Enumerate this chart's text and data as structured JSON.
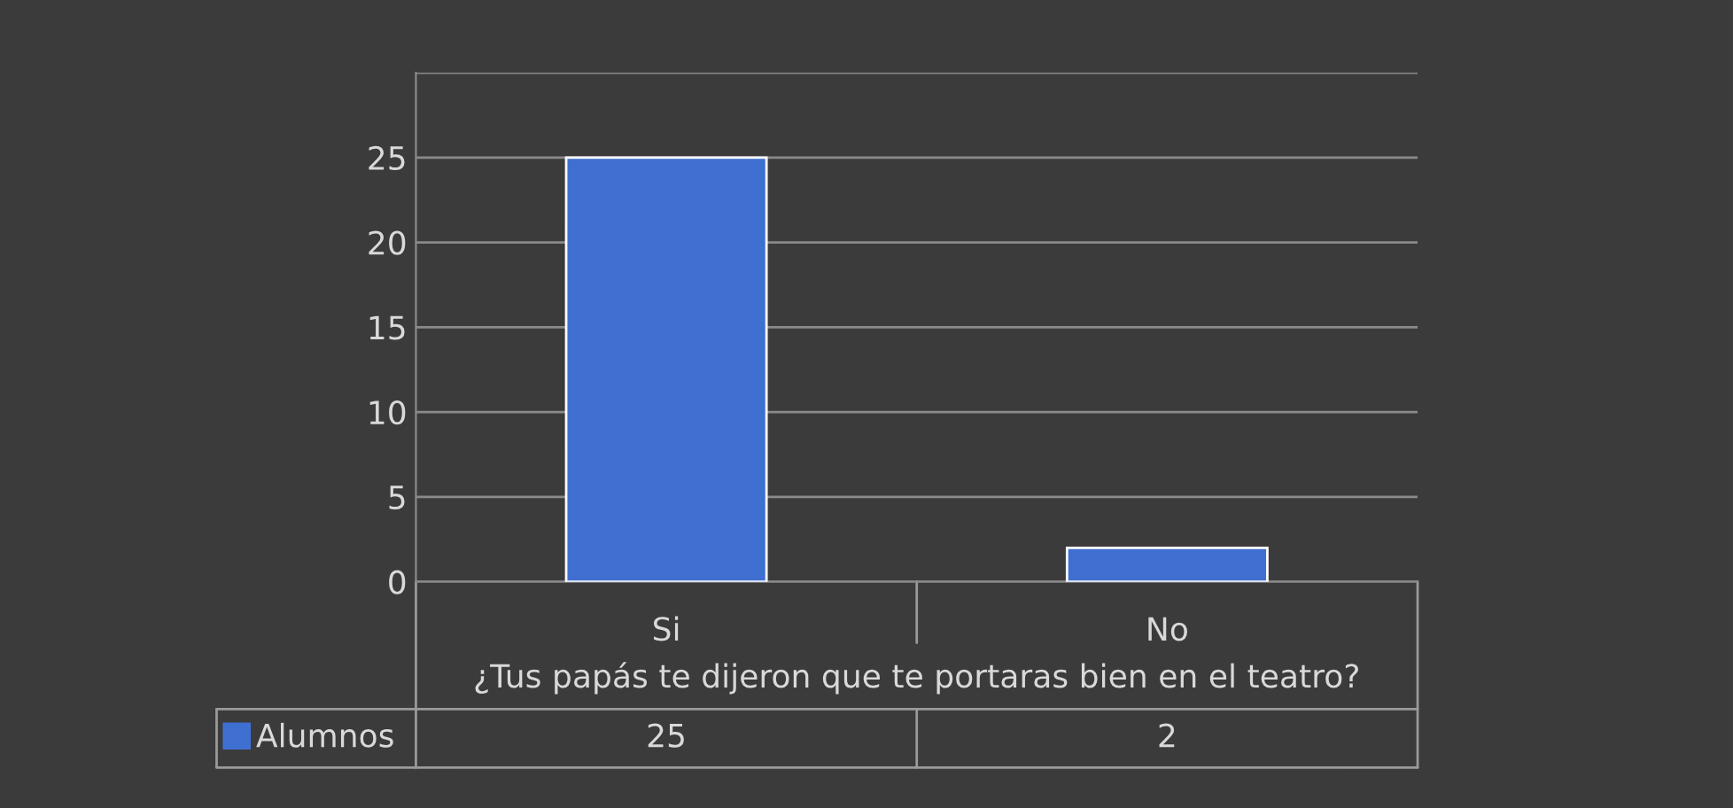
{
  "chart_data": {
    "type": "bar",
    "xlabel": "¿Tus papás te dijeron que te portaras bien en el teatro?",
    "categories": [
      "Si",
      "No"
    ],
    "series": [
      {
        "name": "Alumnos",
        "color": "#3f6fd0",
        "values": [
          25,
          2
        ]
      }
    ],
    "ylim": [
      0,
      30
    ],
    "yticks": [
      0,
      5,
      10,
      15,
      20,
      25,
      {
        "value": 30,
        "label": null
      }
    ],
    "grid": "y",
    "legend": "bottom left",
    "data_labels": true
  }
}
